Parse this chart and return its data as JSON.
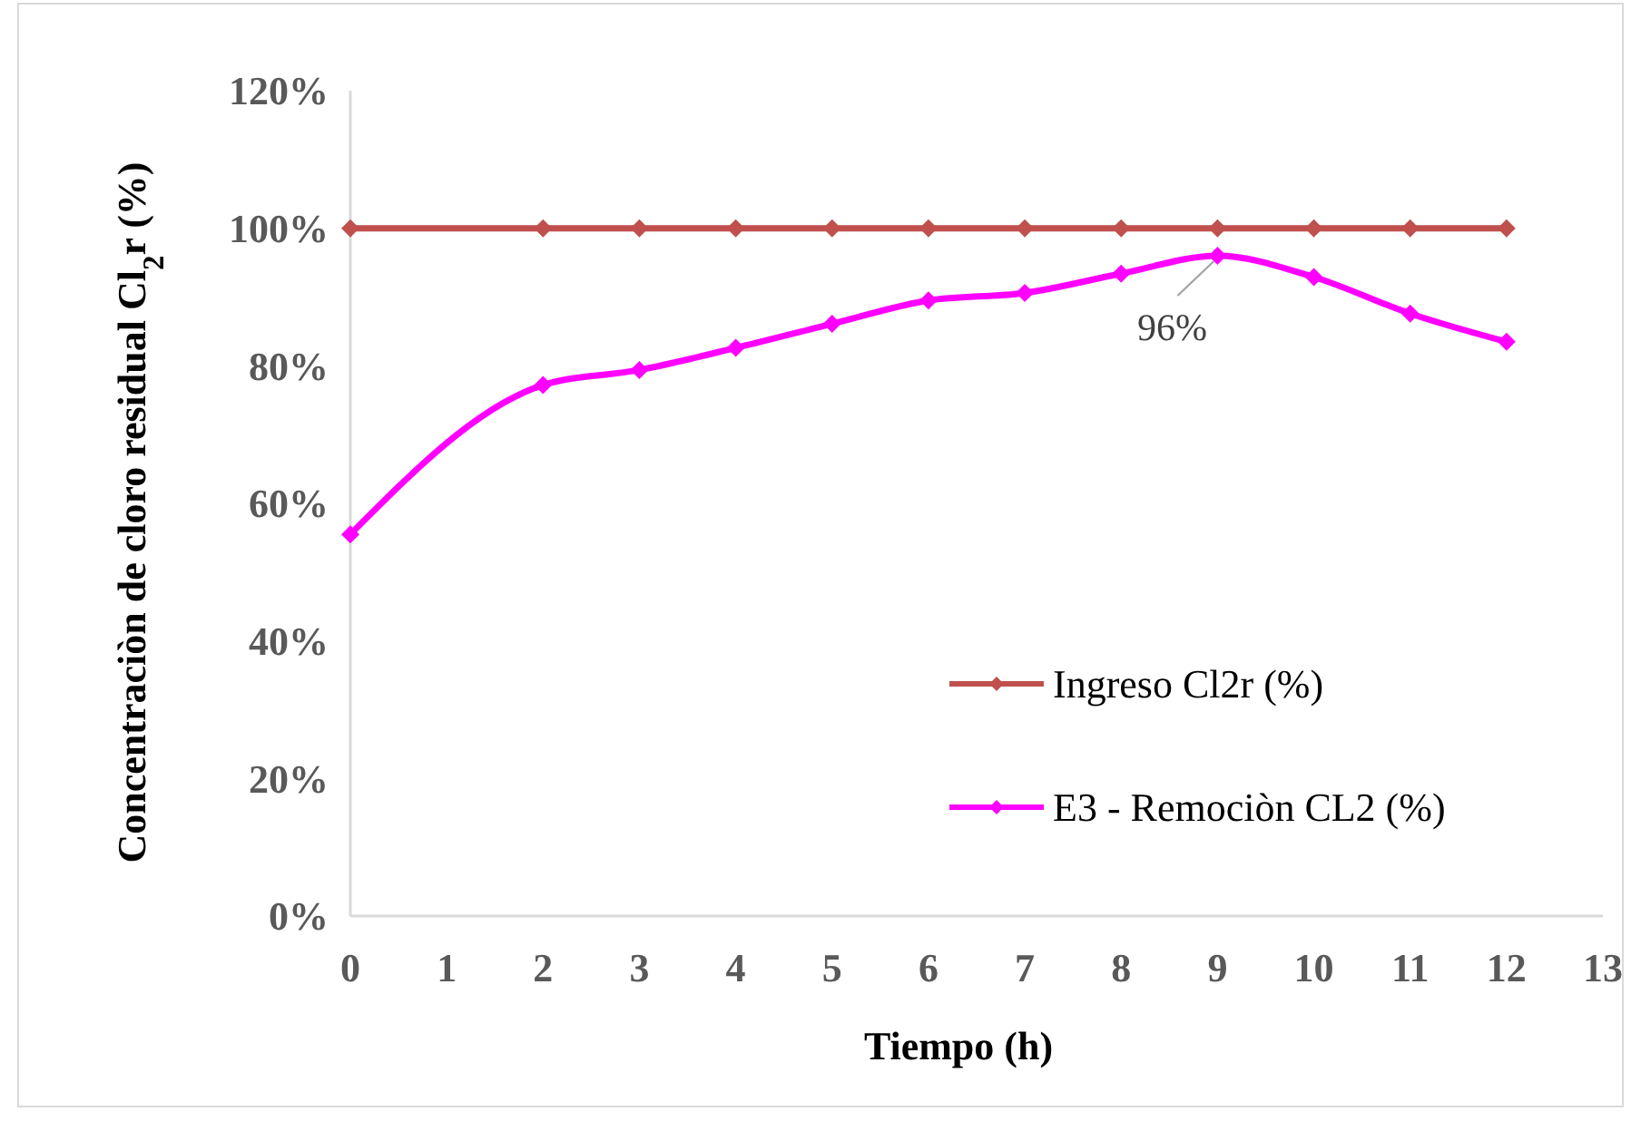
{
  "chart_data": {
    "type": "line",
    "xlabel": "Tiempo (h)",
    "ylabel": "Concentraciòn de cloro residual Cl$_{2}$r (%)",
    "x": [
      0,
      2,
      3,
      4,
      5,
      6,
      7,
      8,
      9,
      10,
      11,
      12
    ],
    "series": [
      {
        "name": "Ingreso Cl2r (%)",
        "color": "#c0504d",
        "values": [
          100,
          100,
          100,
          100,
          100,
          100,
          100,
          100,
          100,
          100,
          100,
          100
        ]
      },
      {
        "name": "E3 - Remociòn CL2 (%)",
        "color": "#ff00ff",
        "values": [
          55.5,
          77.2,
          79.4,
          82.6,
          86.1,
          89.5,
          90.6,
          93.4,
          96,
          92.9,
          87.6,
          83.5
        ]
      }
    ],
    "xlim": [
      0,
      13
    ],
    "xticks": [
      0,
      1,
      2,
      3,
      4,
      5,
      6,
      7,
      8,
      9,
      10,
      11,
      12,
      13
    ],
    "ylim": [
      0,
      120
    ],
    "yticks": [
      {
        "value": 0,
        "label": "0%"
      },
      {
        "value": 20,
        "label": "20%"
      },
      {
        "value": 40,
        "label": "40%"
      },
      {
        "value": 60,
        "label": "60%"
      },
      {
        "value": 80,
        "label": "80%"
      },
      {
        "value": 100,
        "label": "100%"
      },
      {
        "value": 120,
        "label": "120%"
      }
    ],
    "annotations": [
      {
        "text": "96%",
        "x": 9,
        "y": 96
      }
    ],
    "grid": false,
    "legend": "right",
    "marker": "diamond",
    "line_style": "solid"
  }
}
